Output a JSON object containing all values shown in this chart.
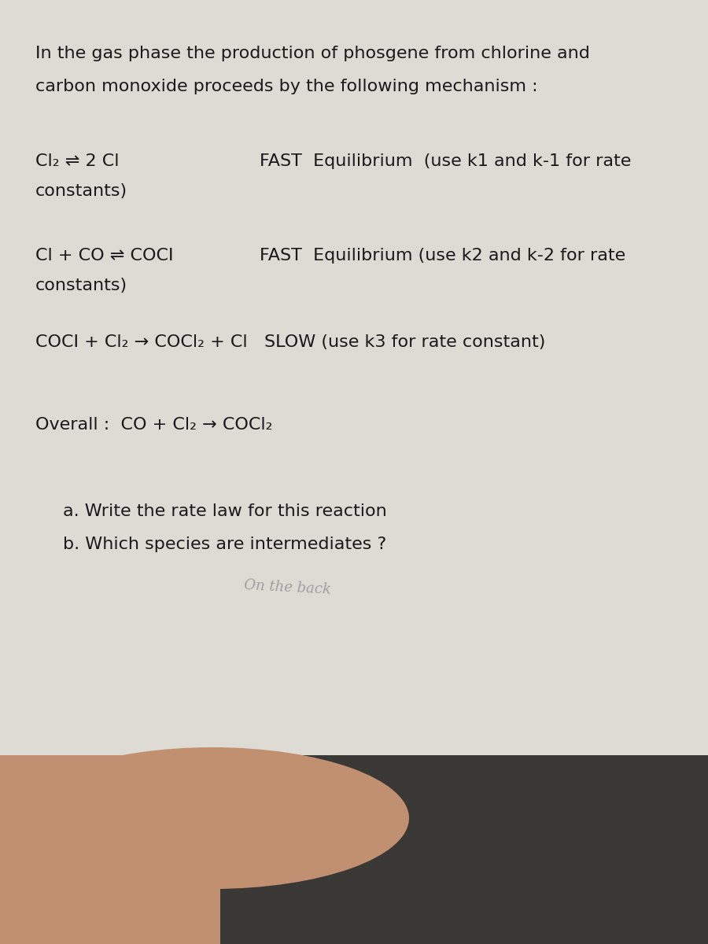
{
  "paper_color": "#dedad4",
  "dark_fabric_color": "#3a3835",
  "light_fabric_color": "#9a9590",
  "hand_color": "#c09070",
  "text_color": "#1a1a1a",
  "title_line1": "In the gas phase the production of phosgene from chlorine and",
  "title_line2": "carbon monoxide proceeds by the following mechanism :",
  "rxn1_left": "Cl₂ ⇌ 2 Cl",
  "rxn1_right": "FAST  Equilibrium  (use k1 and k-1 for rate",
  "rxn1_cont": "constants)",
  "rxn2_left": "Cl + CO ⇌ COCI",
  "rxn2_right": "FAST  Equilibrium (use k2 and k-2 for rate",
  "rxn2_cont": "constants)",
  "rxn3": "COCI + Cl₂ → COCl₂ + Cl   SLOW (use k3 for rate constant)",
  "overall": "Overall :  CO + Cl₂ → COCl₂",
  "qa": "a. Write the rate law for this reaction",
  "qb": "b. Which species are intermediates ?",
  "handwritten": "On the back",
  "font_size_title": 16,
  "font_size_body": 16,
  "font_size_hand": 13
}
